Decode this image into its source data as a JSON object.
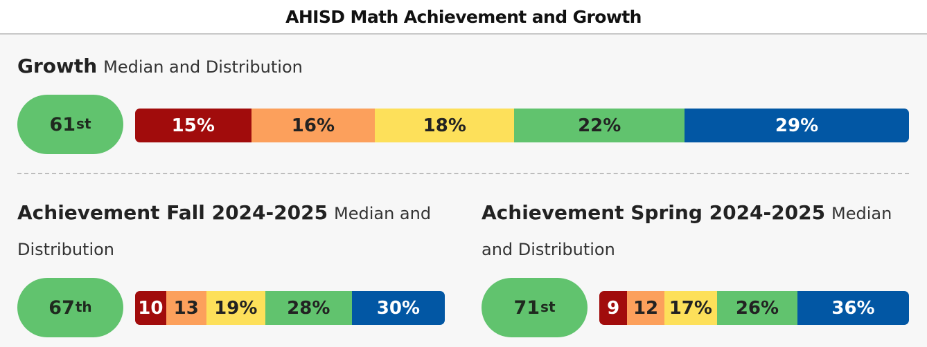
{
  "title": "AHISD Math Achievement and Growth",
  "colors": {
    "red": "#a10c0c",
    "orange": "#fca05c",
    "yellow": "#fde05a",
    "green": "#61c36e",
    "blue": "#0257a4"
  },
  "growth": {
    "heading": "Growth",
    "subheading": "Median and Distribution",
    "median": {
      "number": "61",
      "suffix": "st"
    }
  },
  "fall": {
    "heading": "Achievement Fall 2024-2025",
    "subheading_line1": "Median and",
    "subheading_line2": "Distribution",
    "median": {
      "number": "67",
      "suffix": "th"
    }
  },
  "spring": {
    "heading": "Achievement Spring 2024-2025",
    "subheading_line1": "Median",
    "subheading_line2": "and Distribution",
    "median": {
      "number": "71",
      "suffix": "st"
    }
  },
  "chart_data": [
    {
      "type": "bar",
      "orientation": "horizontal-stacked",
      "name": "Growth",
      "median_percentile": 61,
      "values": [
        15,
        16,
        18,
        22,
        29
      ],
      "labels": [
        "15%",
        "16%",
        "18%",
        "22%",
        "29%"
      ],
      "colors": [
        "#a10c0c",
        "#fca05c",
        "#fde05a",
        "#61c36e",
        "#0257a4"
      ]
    },
    {
      "type": "bar",
      "orientation": "horizontal-stacked",
      "name": "Achievement Fall 2024-2025",
      "median_percentile": 67,
      "values": [
        10,
        13,
        19,
        28,
        30
      ],
      "labels": [
        "10",
        "13",
        "19%",
        "28%",
        "30%"
      ],
      "colors": [
        "#a10c0c",
        "#fca05c",
        "#fde05a",
        "#61c36e",
        "#0257a4"
      ]
    },
    {
      "type": "bar",
      "orientation": "horizontal-stacked",
      "name": "Achievement Spring 2024-2025",
      "median_percentile": 71,
      "values": [
        9,
        12,
        17,
        26,
        36
      ],
      "labels": [
        "9",
        "12",
        "17%",
        "26%",
        "36%"
      ],
      "colors": [
        "#a10c0c",
        "#fca05c",
        "#fde05a",
        "#61c36e",
        "#0257a4"
      ]
    }
  ]
}
